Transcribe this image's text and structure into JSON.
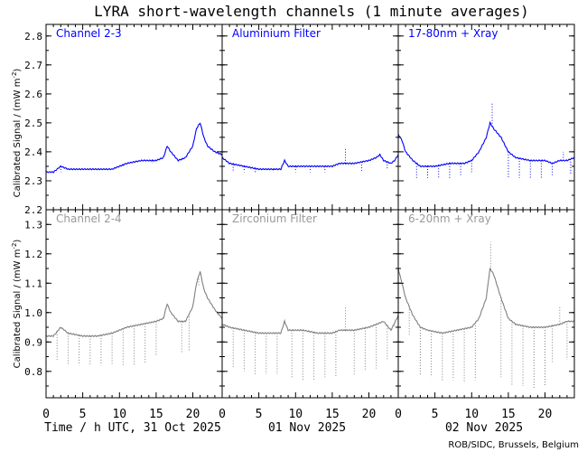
{
  "chart_data": {
    "type": "line",
    "title": "LYRA short-wavelength channels (1 minute averages)",
    "ylabel": "Calibrated Signal / (mW m",
    "ylabel_unit": "-2",
    "ylabel_close": ")",
    "x_ticks": [
      "0",
      "5",
      "10",
      "15",
      "20"
    ],
    "xlim": [
      0,
      24
    ],
    "days": [
      "Time / h UTC, 31 Oct 2025",
      "01 Nov 2025",
      "02 Nov 2025"
    ],
    "credit": "ROB/SIDC, Brussels, Belgium",
    "rows": [
      {
        "ylim": [
          2.2,
          2.84
        ],
        "yticks": [
          "2.2",
          "2.3",
          "2.4",
          "2.5",
          "2.6",
          "2.7",
          "2.8"
        ],
        "color": "#0000ff",
        "label_color": "#0000ff",
        "panels": [
          {
            "name": "Channel 2-3",
            "baseline": [
              [
                0,
                2.33
              ],
              [
                1,
                2.33
              ],
              [
                2,
                2.35
              ],
              [
                3,
                2.34
              ],
              [
                5,
                2.34
              ],
              [
                7,
                2.34
              ],
              [
                9,
                2.34
              ],
              [
                11,
                2.36
              ],
              [
                13,
                2.37
              ],
              [
                15,
                2.37
              ],
              [
                16,
                2.38
              ],
              [
                16.5,
                2.42
              ],
              [
                17,
                2.4
              ],
              [
                18,
                2.37
              ],
              [
                19,
                2.38
              ],
              [
                20,
                2.42
              ],
              [
                20.5,
                2.48
              ],
              [
                21,
                2.5
              ],
              [
                21.5,
                2.45
              ],
              [
                22,
                2.42
              ],
              [
                23,
                2.4
              ],
              [
                24,
                2.39
              ]
            ],
            "dips": [
              [
                2,
                2.33
              ],
              [
                4.3,
                2.34
              ],
              [
                6.3,
                2.34
              ],
              [
                8,
                2.34
              ],
              [
                10.5,
                2.35
              ],
              [
                12.5,
                2.36
              ],
              [
                14.5,
                2.36
              ],
              [
                18.5,
                2.37
              ]
            ]
          },
          {
            "name": "Aluminium Filter",
            "baseline": [
              [
                0,
                2.38
              ],
              [
                1,
                2.36
              ],
              [
                3,
                2.35
              ],
              [
                5,
                2.34
              ],
              [
                7,
                2.34
              ],
              [
                8,
                2.34
              ],
              [
                8.5,
                2.37
              ],
              [
                9,
                2.35
              ],
              [
                11,
                2.35
              ],
              [
                13,
                2.35
              ],
              [
                15,
                2.35
              ],
              [
                16,
                2.36
              ],
              [
                18,
                2.36
              ],
              [
                20,
                2.37
              ],
              [
                21,
                2.38
              ],
              [
                21.5,
                2.39
              ],
              [
                22,
                2.37
              ],
              [
                23,
                2.36
              ],
              [
                23.5,
                2.37
              ],
              [
                24,
                2.39
              ]
            ],
            "dips": [
              [
                1.5,
                2.33
              ],
              [
                3,
                2.33
              ],
              [
                4.5,
                2.33
              ],
              [
                7,
                2.33
              ],
              [
                10,
                2.33
              ],
              [
                12,
                2.33
              ],
              [
                14,
                2.33
              ],
              [
                16.8,
                2.41
              ],
              [
                19,
                2.33
              ],
              [
                22.5,
                2.34
              ]
            ]
          },
          {
            "name": "17-80nm + Xray",
            "baseline": [
              [
                0,
                2.46
              ],
              [
                0.5,
                2.44
              ],
              [
                1,
                2.4
              ],
              [
                2,
                2.37
              ],
              [
                3,
                2.35
              ],
              [
                5,
                2.35
              ],
              [
                7,
                2.36
              ],
              [
                9,
                2.36
              ],
              [
                10,
                2.37
              ],
              [
                11,
                2.4
              ],
              [
                12,
                2.45
              ],
              [
                12.5,
                2.5
              ],
              [
                13,
                2.48
              ],
              [
                14,
                2.45
              ],
              [
                15,
                2.4
              ],
              [
                16,
                2.38
              ],
              [
                18,
                2.37
              ],
              [
                20,
                2.37
              ],
              [
                21,
                2.36
              ],
              [
                22,
                2.37
              ],
              [
                23,
                2.37
              ],
              [
                24,
                2.38
              ]
            ],
            "dips": [
              [
                2.5,
                2.31
              ],
              [
                4,
                2.31
              ],
              [
                5.5,
                2.31
              ],
              [
                7,
                2.31
              ],
              [
                8.5,
                2.32
              ],
              [
                10,
                2.33
              ],
              [
                12.8,
                2.57
              ],
              [
                15,
                2.31
              ],
              [
                16.5,
                2.31
              ],
              [
                18,
                2.31
              ],
              [
                19.5,
                2.31
              ],
              [
                21,
                2.32
              ],
              [
                22.5,
                2.4
              ],
              [
                23.5,
                2.32
              ]
            ]
          }
        ]
      },
      {
        "ylim": [
          0.71,
          1.35
        ],
        "yticks": [
          "0.8",
          "0.9",
          "1.0",
          "1.1",
          "1.2",
          "1.3"
        ],
        "color": "#808080",
        "label_color": "#9a9a9a",
        "panels": [
          {
            "name": "Channel 2-4",
            "baseline": [
              [
                0,
                0.92
              ],
              [
                1,
                0.92
              ],
              [
                2,
                0.95
              ],
              [
                3,
                0.93
              ],
              [
                5,
                0.92
              ],
              [
                7,
                0.92
              ],
              [
                9,
                0.93
              ],
              [
                11,
                0.95
              ],
              [
                13,
                0.96
              ],
              [
                15,
                0.97
              ],
              [
                16,
                0.98
              ],
              [
                16.5,
                1.03
              ],
              [
                17,
                1.0
              ],
              [
                18,
                0.97
              ],
              [
                19,
                0.97
              ],
              [
                20,
                1.02
              ],
              [
                20.5,
                1.1
              ],
              [
                21,
                1.14
              ],
              [
                21.5,
                1.08
              ],
              [
                22,
                1.05
              ],
              [
                23,
                1.01
              ],
              [
                24,
                0.98
              ]
            ],
            "dips": [
              [
                1.5,
                0.84
              ],
              [
                3,
                0.82
              ],
              [
                4.5,
                0.82
              ],
              [
                6,
                0.82
              ],
              [
                7.5,
                0.82
              ],
              [
                9,
                0.82
              ],
              [
                10.5,
                0.82
              ],
              [
                12,
                0.82
              ],
              [
                13.5,
                0.83
              ],
              [
                15,
                0.85
              ],
              [
                18.5,
                0.86
              ],
              [
                19.5,
                0.87
              ],
              [
                20.8,
                1.09
              ]
            ]
          },
          {
            "name": "Zirconium Filter",
            "baseline": [
              [
                0,
                0.96
              ],
              [
                1,
                0.95
              ],
              [
                3,
                0.94
              ],
              [
                5,
                0.93
              ],
              [
                7,
                0.93
              ],
              [
                8,
                0.93
              ],
              [
                8.5,
                0.97
              ],
              [
                9,
                0.94
              ],
              [
                11,
                0.94
              ],
              [
                13,
                0.93
              ],
              [
                15,
                0.93
              ],
              [
                16,
                0.94
              ],
              [
                18,
                0.94
              ],
              [
                20,
                0.95
              ],
              [
                21,
                0.96
              ],
              [
                22,
                0.97
              ],
              [
                23,
                0.94
              ],
              [
                24,
                0.99
              ]
            ],
            "dips": [
              [
                1.5,
                0.81
              ],
              [
                3,
                0.8
              ],
              [
                4.5,
                0.79
              ],
              [
                6,
                0.79
              ],
              [
                7.5,
                0.79
              ],
              [
                9.5,
                0.78
              ],
              [
                11,
                0.77
              ],
              [
                12.5,
                0.77
              ],
              [
                14,
                0.78
              ],
              [
                15.5,
                0.78
              ],
              [
                16.8,
                1.02
              ],
              [
                18,
                0.79
              ],
              [
                19.5,
                0.8
              ],
              [
                21,
                0.81
              ],
              [
                22.5,
                0.84
              ],
              [
                23.5,
                0.95
              ]
            ]
          },
          {
            "name": "6-20nm + Xray",
            "baseline": [
              [
                0,
                1.15
              ],
              [
                0.5,
                1.1
              ],
              [
                1,
                1.05
              ],
              [
                2,
                0.99
              ],
              [
                3,
                0.95
              ],
              [
                4,
                0.94
              ],
              [
                6,
                0.93
              ],
              [
                8,
                0.94
              ],
              [
                10,
                0.95
              ],
              [
                11,
                0.98
              ],
              [
                12,
                1.05
              ],
              [
                12.5,
                1.15
              ],
              [
                13,
                1.13
              ],
              [
                14,
                1.05
              ],
              [
                15,
                0.98
              ],
              [
                16,
                0.96
              ],
              [
                18,
                0.95
              ],
              [
                20,
                0.95
              ],
              [
                22,
                0.96
              ],
              [
                23,
                0.97
              ],
              [
                24,
                0.97
              ]
            ],
            "dips": [
              [
                1.5,
                0.92
              ],
              [
                3,
                0.79
              ],
              [
                4.5,
                0.78
              ],
              [
                6,
                0.77
              ],
              [
                7.5,
                0.77
              ],
              [
                9,
                0.76
              ],
              [
                10.5,
                0.77
              ],
              [
                12.6,
                1.24
              ],
              [
                14,
                0.78
              ],
              [
                15.5,
                0.75
              ],
              [
                17,
                0.75
              ],
              [
                18.5,
                0.74
              ],
              [
                20,
                0.75
              ],
              [
                21,
                0.83
              ],
              [
                22,
                1.02
              ],
              [
                23,
                0.84
              ]
            ]
          }
        ]
      }
    ]
  }
}
